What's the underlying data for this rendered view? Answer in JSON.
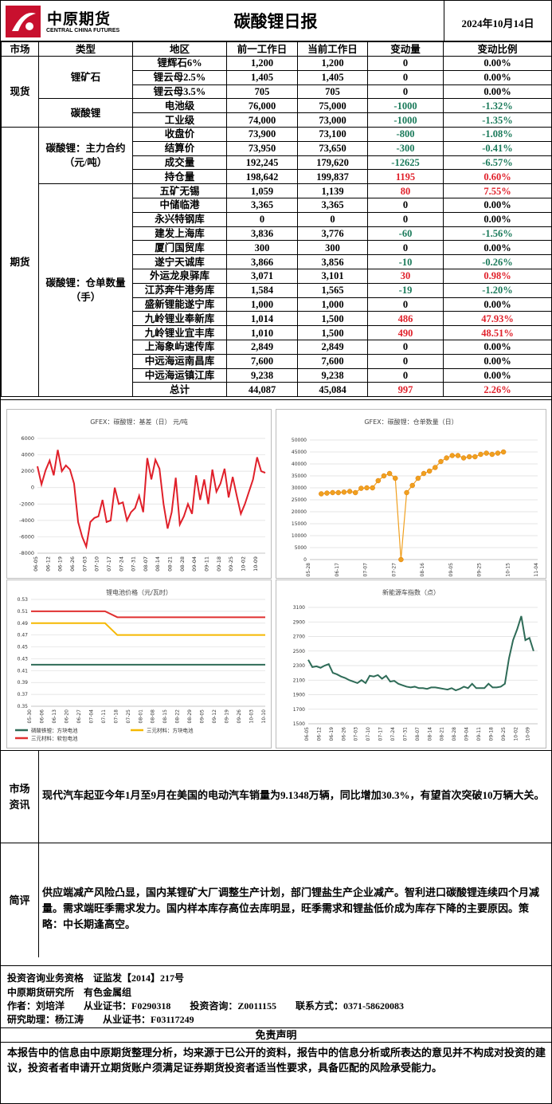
{
  "header": {
    "logo": "中原期货",
    "logo_en": "CENTRAL CHINA FUTURES",
    "title": "碳酸锂日报",
    "date": "2024年10月14日"
  },
  "table": {
    "columns": [
      "市场",
      "类型",
      "地区",
      "前一工作日",
      "当前工作日",
      "变动量",
      "变动比例"
    ],
    "markets": [
      {
        "label": "现货",
        "types": [
          {
            "label": "锂矿石",
            "rows": [
              [
                "锂辉石6%",
                "1,200",
                "1,200",
                "0",
                "0.00%"
              ],
              [
                "锂云母2.5%",
                "1,405",
                "1,405",
                "0",
                "0.00%"
              ],
              [
                "锂云母3.5%",
                "705",
                "705",
                "0",
                "0.00%"
              ]
            ]
          },
          {
            "label": "碳酸锂",
            "rows": [
              [
                "电池级",
                "76,000",
                "75,000",
                "-1000",
                "-1.32%"
              ],
              [
                "工业级",
                "74,000",
                "73,000",
                "-1000",
                "-1.35%"
              ]
            ]
          }
        ]
      },
      {
        "label": "期货",
        "types": [
          {
            "label": "碳酸锂：主力合约（元/吨）",
            "rows": [
              [
                "收盘价",
                "73,900",
                "73,100",
                "-800",
                "-1.08%"
              ],
              [
                "结算价",
                "73,950",
                "73,650",
                "-300",
                "-0.41%"
              ],
              [
                "成交量",
                "192,245",
                "179,620",
                "-12625",
                "-6.57%"
              ],
              [
                "持仓量",
                "198,642",
                "199,837",
                "1195",
                "0.60%"
              ]
            ]
          },
          {
            "label": "碳酸锂：仓单数量（手）",
            "rows": [
              [
                "五矿无锡",
                "1,059",
                "1,139",
                "80",
                "7.55%"
              ],
              [
                "中储临港",
                "3,365",
                "3,365",
                "0",
                "0.00%"
              ],
              [
                "永兴特钢库",
                "0",
                "0",
                "0",
                "0.00%"
              ],
              [
                "建发上海库",
                "3,836",
                "3,776",
                "-60",
                "-1.56%"
              ],
              [
                "厦门国贸库",
                "300",
                "300",
                "0",
                "0.00%"
              ],
              [
                "遂宁天诚库",
                "3,866",
                "3,856",
                "-10",
                "-0.26%"
              ],
              [
                "外运龙泉驿库",
                "3,071",
                "3,101",
                "30",
                "0.98%"
              ],
              [
                "江苏奔牛港务库",
                "1,584",
                "1,565",
                "-19",
                "-1.20%"
              ],
              [
                "盛新锂能遂宁库",
                "1,000",
                "1,000",
                "0",
                "0.00%"
              ],
              [
                "九岭锂业奉新库",
                "1,014",
                "1,500",
                "486",
                "47.93%"
              ],
              [
                "九岭锂业宜丰库",
                "1,010",
                "1,500",
                "490",
                "48.51%"
              ],
              [
                "上海象屿速传库",
                "2,849",
                "2,849",
                "0",
                "0.00%"
              ],
              [
                "中远海运南昌库",
                "7,600",
                "7,600",
                "0",
                "0.00%"
              ],
              [
                "中远海运镇江库",
                "9,238",
                "9,238",
                "0",
                "0.00%"
              ],
              [
                "总计",
                "44,087",
                "45,084",
                "997",
                "2.26%"
              ]
            ]
          }
        ]
      }
    ]
  },
  "chart_data": [
    {
      "type": "line",
      "title": "GFEX：碳酸锂：基差（日） 元/吨",
      "categories": [
        "06-05",
        null,
        null,
        "06-12",
        null,
        null,
        "06-19",
        null,
        null,
        "06-26",
        null,
        null,
        "07-03",
        null,
        null,
        "07-10",
        null,
        null,
        "07-17",
        null,
        null,
        "07-24",
        null,
        null,
        "07-31",
        null,
        null,
        "08-07",
        null,
        null,
        "08-14",
        null,
        null,
        "08-21",
        null,
        null,
        "08-28",
        null,
        null,
        "09-04",
        null,
        null,
        "09-11",
        null,
        null,
        "09-18",
        null,
        null,
        "09-25",
        null,
        null,
        "10-02",
        null,
        null,
        "10-09",
        null,
        null
      ],
      "series": [
        {
          "color": "#e0202a",
          "values": [
            2600,
            400,
            2100,
            3300,
            1500,
            4600,
            2000,
            2700,
            2200,
            500,
            -4200,
            -6000,
            -7200,
            -4200,
            -3700,
            -3500,
            -1500,
            -4200,
            -4000,
            0,
            -2000,
            -1800,
            -4000,
            -3000,
            -2500,
            -1000,
            -3000,
            3600,
            1000,
            3400,
            2300,
            -2000,
            -5000,
            -3000,
            1200,
            -4500,
            -3500,
            -2000,
            -3200,
            1500,
            -1500,
            1000,
            -2000,
            2200,
            -500,
            500,
            2300,
            -1200,
            1300,
            -1000,
            -3200,
            -2000,
            -500,
            1000,
            3700,
            2000,
            1800
          ]
        }
      ],
      "ylim": [
        -8000,
        6000
      ],
      "yticks": [
        -8000,
        -6000,
        -4000,
        -2000,
        0,
        2000,
        4000,
        6000
      ],
      "grid": true
    },
    {
      "type": "line",
      "title": "GFEX：碳酸锂：仓单数量（日）",
      "categories": [
        "05-28",
        null,
        null,
        null,
        null,
        "06-17",
        null,
        null,
        null,
        null,
        "07-07",
        null,
        null,
        null,
        null,
        "07-27",
        null,
        null,
        null,
        null,
        "08-16",
        null,
        null,
        null,
        null,
        "09-05",
        null,
        null,
        null,
        null,
        "09-25",
        null,
        null,
        null,
        null,
        "10-15",
        null,
        null,
        null,
        null,
        "11-04"
      ],
      "series": [
        {
          "color": "#f0a020",
          "markers": true,
          "values": [
            null,
            null,
            27500,
            27800,
            28000,
            28000,
            28200,
            28500,
            28000,
            29800,
            30000,
            30000,
            33000,
            35000,
            36000,
            34000,
            0,
            28000,
            31000,
            34000,
            36000,
            37000,
            38500,
            41000,
            42500,
            43500,
            43500,
            42500,
            43000,
            43000,
            44000,
            44500,
            44000,
            44500,
            45000,
            null,
            null,
            null,
            null,
            null,
            null
          ]
        }
      ],
      "ylim": [
        0,
        50000
      ],
      "yticks": [
        0,
        5000,
        10000,
        15000,
        20000,
        25000,
        30000,
        35000,
        40000,
        45000,
        50000
      ],
      "grid": true
    },
    {
      "type": "line",
      "title": "锂电池价格（元/瓦时）",
      "categories": [
        "05-30",
        "06-06",
        "06-13",
        "06-20",
        "06-27",
        "07-04",
        "07-11",
        "07-18",
        "07-25",
        "08-01",
        "08-08",
        "08-15",
        "08-22",
        "08-29",
        "09-05",
        "09-12",
        "09-19",
        "09-26",
        "10-03",
        "10-10"
      ],
      "series": [
        {
          "name": "磷酸铁锂：方块电池",
          "color": "#2e6b57",
          "values": [
            0.42,
            0.42,
            0.42,
            0.42,
            0.42,
            0.42,
            0.42,
            0.42,
            0.42,
            0.42,
            0.42,
            0.42,
            0.42,
            0.42,
            0.42,
            0.42,
            0.42,
            0.42,
            0.42,
            0.42
          ]
        },
        {
          "name": "三元材料：方块电池",
          "color": "#f5b800",
          "values": [
            0.49,
            0.49,
            0.49,
            0.49,
            0.49,
            0.49,
            0.49,
            0.47,
            0.47,
            0.47,
            0.47,
            0.47,
            0.47,
            0.47,
            0.47,
            0.47,
            0.47,
            0.47,
            0.47,
            0.47
          ]
        },
        {
          "name": "三元材料：软包电池",
          "color": "#e03030",
          "values": [
            0.51,
            0.51,
            0.51,
            0.51,
            0.51,
            0.51,
            0.51,
            0.5,
            0.5,
            0.5,
            0.5,
            0.5,
            0.5,
            0.5,
            0.5,
            0.5,
            0.5,
            0.5,
            0.5,
            0.5
          ]
        }
      ],
      "ylim": [
        0.35,
        0.53
      ],
      "yticks": [
        0.35,
        0.37,
        0.39,
        0.41,
        0.43,
        0.45,
        0.47,
        0.49,
        0.51,
        0.53
      ],
      "grid": true,
      "legend": "bottom"
    },
    {
      "type": "line",
      "title": "新能源车指数（点）",
      "categories": [
        "06-05",
        null,
        null,
        "06-12",
        null,
        null,
        "06-19",
        null,
        null,
        "06-26",
        null,
        null,
        "07-03",
        null,
        null,
        "07-10",
        null,
        null,
        "07-17",
        null,
        null,
        "07-24",
        null,
        null,
        "07-31",
        null,
        null,
        "08-07",
        null,
        null,
        "08-14",
        null,
        null,
        "08-21",
        null,
        null,
        "08-28",
        null,
        null,
        "09-04",
        null,
        null,
        "09-11",
        null,
        null,
        "09-18",
        null,
        null,
        "09-25",
        null,
        null,
        "10-02",
        null,
        null,
        "10-09",
        null,
        null
      ],
      "series": [
        {
          "color": "#2e6b57",
          "values": [
            2380,
            2280,
            2290,
            2270,
            2300,
            2320,
            2200,
            2180,
            2150,
            2130,
            2100,
            2080,
            2060,
            2100,
            2060,
            2160,
            2150,
            2170,
            2120,
            2160,
            2080,
            2090,
            2050,
            2030,
            2010,
            2000,
            2010,
            1990,
            1990,
            1980,
            2000,
            2000,
            1990,
            1980,
            1970,
            1990,
            1960,
            1980,
            2010,
            1990,
            2050,
            1990,
            1990,
            1990,
            2050,
            2000,
            2000,
            2010,
            2050,
            2400,
            2650,
            2800,
            2980,
            2650,
            2680,
            2500,
            null
          ]
        }
      ],
      "ylim": [
        1500,
        3100
      ],
      "yticks": [
        1500,
        1700,
        1900,
        2100,
        2300,
        2500,
        2700,
        2900,
        3100
      ],
      "grid": true
    }
  ],
  "news": {
    "label": "市场\n资讯",
    "text": "现代汽车起亚今年1月至9月在美国的电动汽车销量为9.1348万辆，同比增加30.3%，有望首次突破10万辆大关。"
  },
  "comment": {
    "label": "简评",
    "text": "供应端减产风险凸显，国内某锂矿大厂调整生产计划，部门锂盐生产企业减产。智利进口碳酸锂连续四个月减量。需求端旺季需求发力。国内样本库存高位去库明显，旺季需求和锂盐低价成为库存下降的主要原因。策略：中长期逢高空。"
  },
  "footer": {
    "lines": [
      "投资咨询业务资格　证监发【2014】217号",
      "中原期货研究所　有色金属组",
      "作者：刘培洋　　从业证书：F0290318　　投资咨询：Z0011155　　联系方式：0371-58620083",
      "研究助理：杨江涛　　从业证书：F03117249"
    ],
    "disclaimer_title": "免责声明",
    "disclaimer": "本报告中的信息由中原期货整理分析，均来源于已公开的资料，报告中的信息分析或所表达的意见并不构成对投资的建议，投资者者申请开立期货账户须满足证券期货投资者适当性要求，具备匹配的风险承受能力。"
  }
}
